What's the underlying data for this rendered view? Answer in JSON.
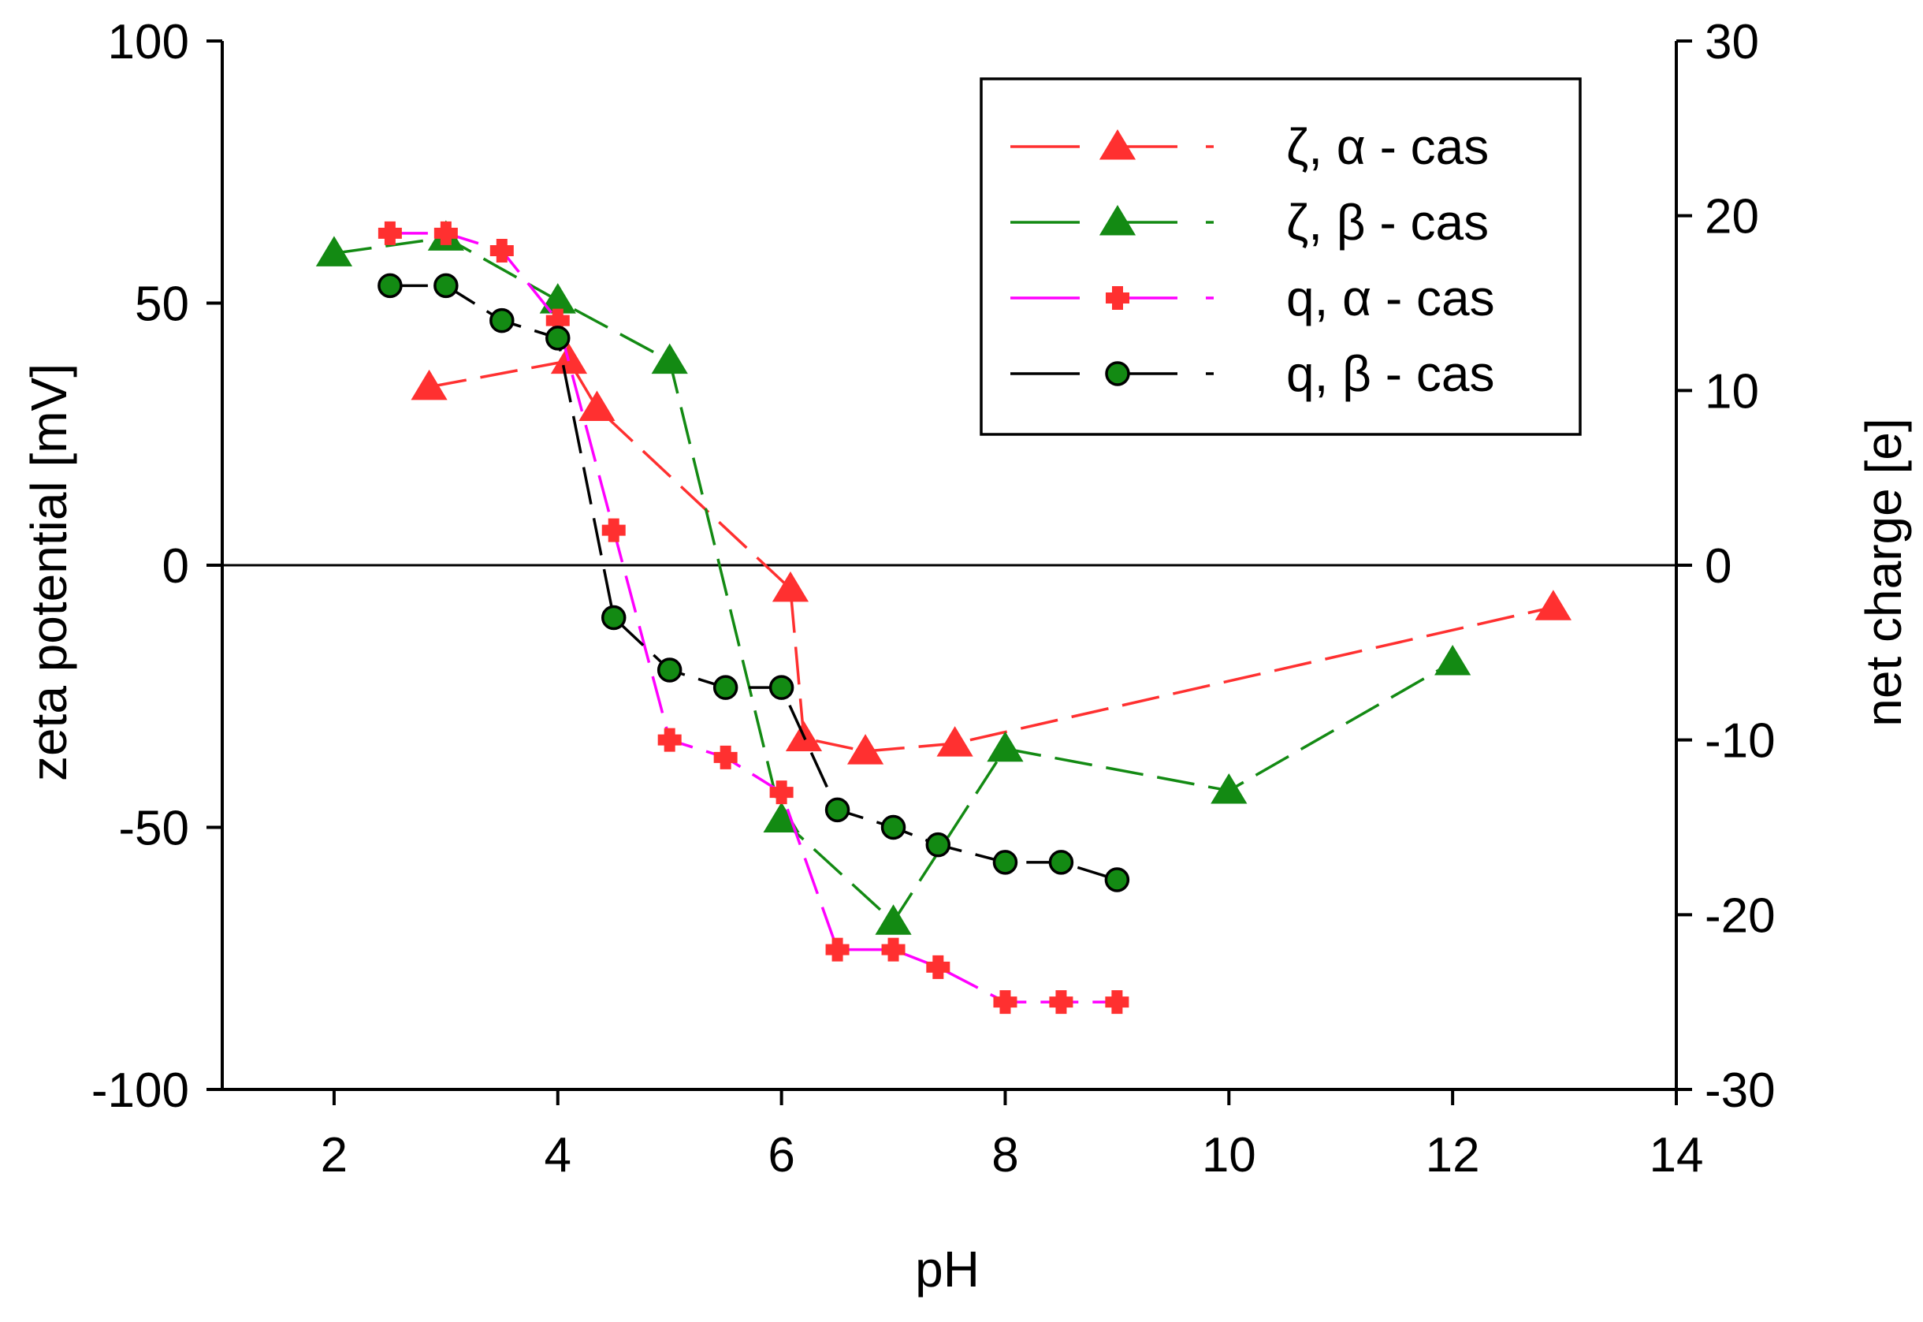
{
  "chart_data": {
    "type": "line",
    "xlabel": "pH",
    "ylabel": "zeta potential [mV]",
    "y2label": "net charge [e]",
    "xlim": [
      1,
      14
    ],
    "ylim": [
      -100,
      100
    ],
    "y2lim": [
      -30,
      30
    ],
    "xticks": [
      2,
      4,
      6,
      8,
      10,
      12,
      14
    ],
    "yticks": [
      -100,
      -50,
      0,
      50,
      100
    ],
    "y2ticks": [
      -30,
      -20,
      -10,
      0,
      10,
      20,
      30
    ],
    "reference_line": 0,
    "legend_position": "top-right",
    "series": [
      {
        "name": "ζ, α - cas",
        "axis": "left",
        "color": "#ff3030",
        "line": "#ff3030",
        "marker": "triangle",
        "x": [
          2.85,
          4.1,
          4.35,
          6.08,
          6.2,
          6.75,
          7.55,
          12.9
        ],
        "y": [
          34,
          39,
          30,
          -4.5,
          -33,
          -35.5,
          -34,
          -8
        ]
      },
      {
        "name": "ζ, β - cas",
        "axis": "left",
        "color": "#138a13",
        "line": "#138a13",
        "marker": "triangle",
        "x": [
          2.0,
          3.0,
          4.0,
          5.0,
          6.0,
          7.0,
          8.0,
          10.0,
          12.0
        ],
        "y": [
          59.5,
          62.5,
          50.5,
          39,
          -48.5,
          -68,
          -35,
          -43,
          -18.5
        ]
      },
      {
        "name": "q, α - cas",
        "axis": "right",
        "color": "#ff3030",
        "line": "#ff00ff",
        "marker": "cross",
        "x": [
          2.5,
          3.0,
          3.5,
          4.0,
          4.5,
          5.0,
          5.5,
          6.0,
          6.5,
          7.0,
          7.4,
          8.0,
          8.5,
          9.0
        ],
        "y": [
          19,
          19,
          18,
          14,
          2,
          -10,
          -11,
          -13,
          -22,
          -22,
          -23,
          -25,
          -25,
          -25
        ]
      },
      {
        "name": "q, β - cas",
        "axis": "right",
        "color": "#138a13",
        "line": "#000000",
        "marker": "circle",
        "x": [
          2.5,
          3.0,
          3.5,
          4.0,
          4.5,
          5.0,
          5.5,
          6.0,
          6.5,
          7.0,
          7.4,
          8.0,
          8.5,
          9.0
        ],
        "y": [
          16,
          16,
          14,
          13,
          -3,
          -6,
          -7,
          -7,
          -14,
          -15,
          -16,
          -17,
          -17,
          -18
        ]
      }
    ]
  }
}
